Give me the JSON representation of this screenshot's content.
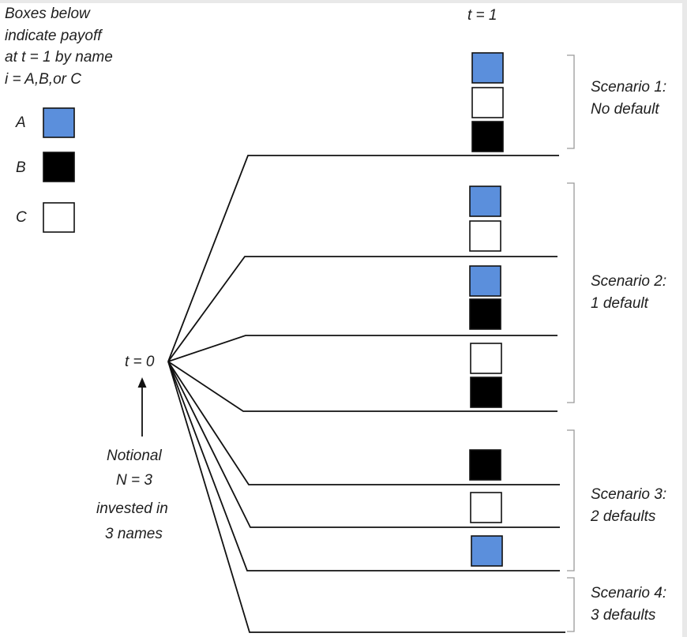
{
  "legend": {
    "title_lines": [
      "Boxes below",
      "indicate payoff",
      "at t = 1 by name",
      "i = A,B,or C"
    ],
    "items": [
      {
        "label": "A",
        "color": "#5b8fdc"
      },
      {
        "label": "B",
        "color": "#000000"
      },
      {
        "label": "C",
        "color": "#ffffff"
      }
    ]
  },
  "time_labels": {
    "t0": "t = 0",
    "t1": "t = 1"
  },
  "notional_lines": [
    "Notional",
    "N = 3",
    "invested in",
    "3  names"
  ],
  "scenarios": [
    {
      "title": "Scenario 1:",
      "subtitle": "No default"
    },
    {
      "title": "Scenario 2:",
      "subtitle": "1 default"
    },
    {
      "title": "Scenario 3:",
      "subtitle": "2 defaults"
    },
    {
      "title": "Scenario 4:",
      "subtitle": "3 defaults"
    }
  ],
  "colors": {
    "line": "#111111",
    "bracket": "#9a9a9a",
    "blue": "#5b8fdc",
    "black": "#000000",
    "white": "#ffffff"
  },
  "branches": [
    {
      "boxes": [
        "A",
        "C",
        "B"
      ]
    },
    {
      "boxes": [
        "A",
        "C"
      ]
    },
    {
      "boxes": [
        "A",
        "B"
      ]
    },
    {
      "boxes": [
        "C",
        "B"
      ]
    },
    {
      "boxes": [
        "B"
      ]
    },
    {
      "boxes": [
        "C"
      ]
    },
    {
      "boxes": [
        "A"
      ]
    },
    {
      "boxes": []
    }
  ]
}
